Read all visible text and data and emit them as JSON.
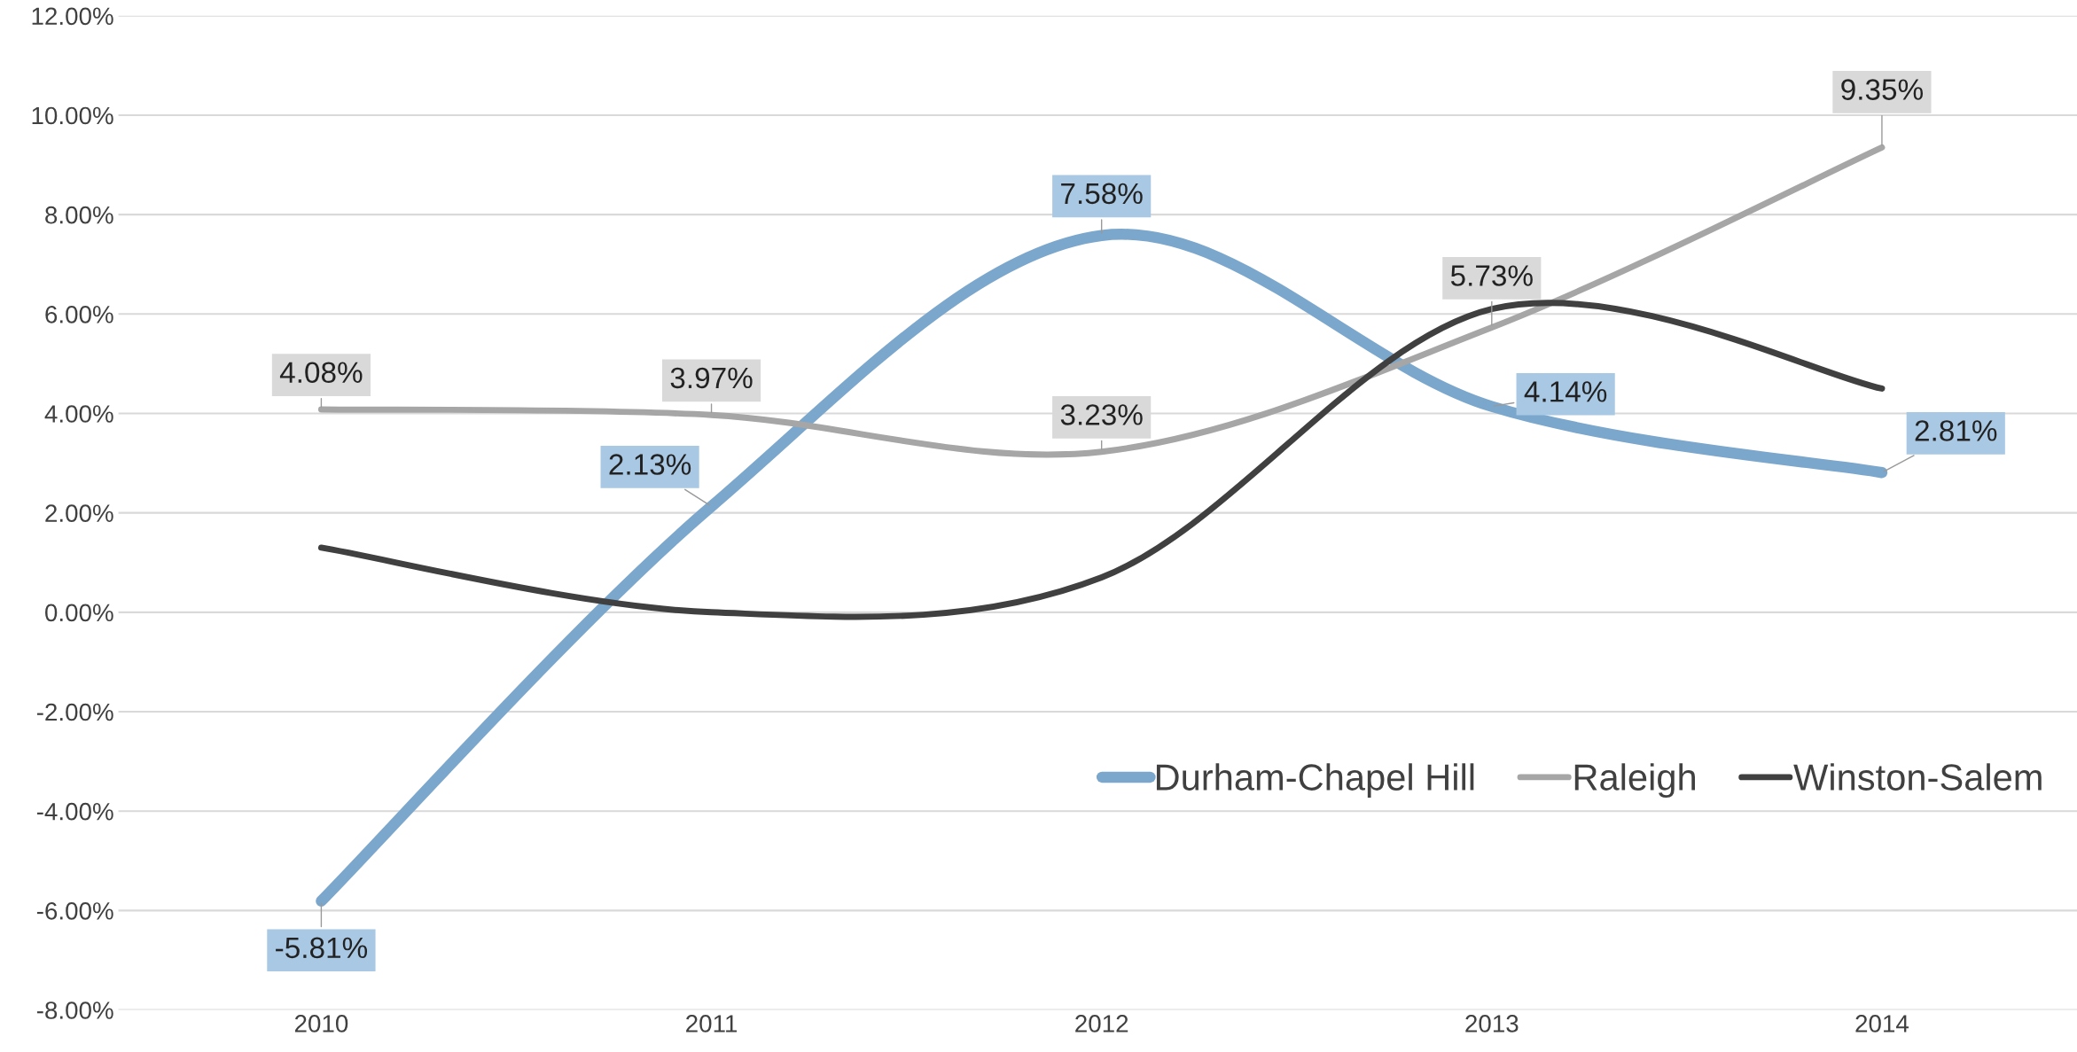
{
  "chart_data": {
    "type": "line",
    "categories": [
      "2010",
      "2011",
      "2012",
      "2013",
      "2014"
    ],
    "series": [
      {
        "name": "Durham-Chapel Hill",
        "color": "#7ba7cc",
        "values": [
          -5.81,
          2.13,
          7.58,
          4.14,
          2.81
        ],
        "value_labels": [
          "-5.81%",
          "2.13%",
          "7.58%",
          "4.14%",
          "2.81%"
        ]
      },
      {
        "name": "Raleigh",
        "color": "#a6a6a6",
        "values": [
          4.08,
          3.97,
          3.23,
          5.73,
          9.35
        ],
        "value_labels": [
          "4.08%",
          "3.97%",
          "3.23%",
          "5.73%",
          "9.35%"
        ]
      },
      {
        "name": "Winston-Salem",
        "color": "#404040",
        "values": [
          1.3,
          0.0,
          0.7,
          6.1,
          4.5
        ]
      }
    ],
    "ylim": [
      -8,
      12
    ],
    "yticks": [
      {
        "value": -8,
        "label": "-8.00%"
      },
      {
        "value": -6,
        "label": "-6.00%"
      },
      {
        "value": -4,
        "label": "-4.00%"
      },
      {
        "value": -2,
        "label": "-2.00%"
      },
      {
        "value": 0,
        "label": "0.00%"
      },
      {
        "value": 2,
        "label": "2.00%"
      },
      {
        "value": 4,
        "label": "4.00%"
      },
      {
        "value": 6,
        "label": "6.00%"
      },
      {
        "value": 8,
        "label": "8.00%"
      },
      {
        "value": 10,
        "label": "10.00%"
      },
      {
        "value": 12,
        "label": "12.00%"
      }
    ],
    "grid": "y",
    "legend": "bottom right",
    "marker": "none",
    "line_style": "solid"
  }
}
